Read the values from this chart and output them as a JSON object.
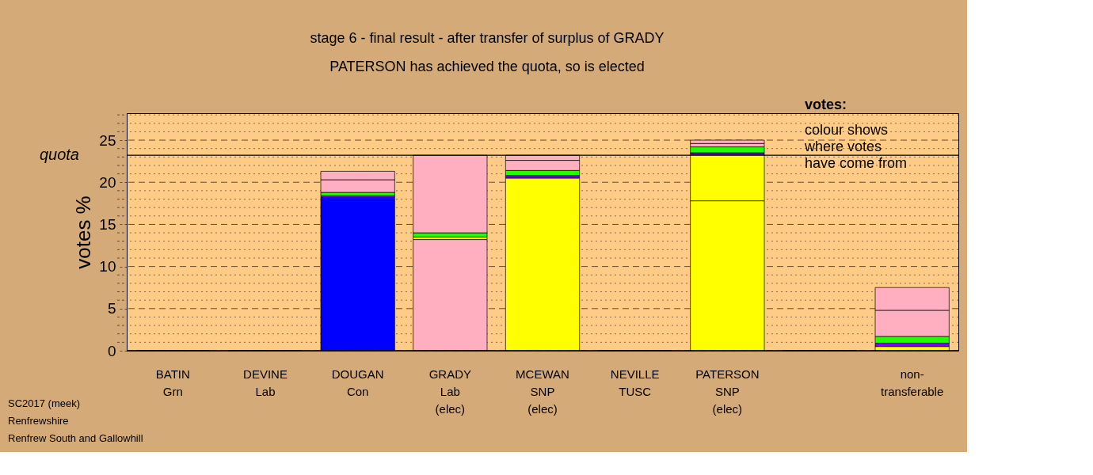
{
  "chart_data": {
    "type": "bar",
    "stacked": true,
    "title": "stage 6 - final result - after transfer of surplus of GRADY",
    "subtitle": "PATERSON has achieved the quota, so is elected",
    "ylabel": "votes %",
    "categories": [
      "BATIN\nGrn",
      "DEVINE\nLab",
      "DOUGAN\nCon",
      "GRADY\nLab\n(elec)",
      "MCEWAN\nSNP\n(elec)",
      "NEVILLE\nTUSC",
      "PATERSON\nSNP\n(elec)",
      null,
      "non-\ntransferable"
    ],
    "series": [
      {
        "values": [
          0,
          0,
          18.2,
          13.2,
          20.5,
          0,
          17.8,
          0,
          0.5
        ],
        "colors": [
          "#000000",
          "#000000",
          "#0000ff",
          "#ffafc0",
          "#ffff00",
          "#000000",
          "#ffff00",
          "#000000",
          "#ffff00"
        ]
      },
      {
        "values": [
          null,
          null,
          0.2,
          0.3,
          0.3,
          null,
          5.5,
          null,
          0.4
        ],
        "colors": [
          null,
          null,
          "#7f00ff",
          "#ffff00",
          "#7f00ff",
          null,
          "#ffff00",
          null,
          "#7f00ff"
        ]
      },
      {
        "values": [
          null,
          null,
          0.4,
          0.5,
          0.6,
          null,
          0.2,
          null,
          0.8
        ],
        "colors": [
          null,
          null,
          "#22ff00",
          "#22ff00",
          "#22ff00",
          null,
          "#7f00ff",
          null,
          "#22ff00"
        ]
      },
      {
        "values": [
          null,
          null,
          1.5,
          9.2,
          1.2,
          null,
          0.7,
          null,
          3.1
        ],
        "colors": [
          null,
          null,
          "#ffafc0",
          "#ffafc0",
          "#ffafc0",
          null,
          "#22ff00",
          null,
          "#ffafc0"
        ]
      },
      {
        "values": [
          null,
          null,
          1.0,
          null,
          0.6,
          null,
          0.4,
          null,
          2.7
        ],
        "colors": [
          null,
          null,
          "#ffafc0",
          null,
          "#ffafc0",
          null,
          "#ffafc0",
          null,
          "#ffafc0"
        ]
      },
      {
        "values": [
          null,
          null,
          null,
          null,
          null,
          null,
          0.4,
          null,
          null
        ],
        "colors": [
          null,
          null,
          null,
          null,
          null,
          null,
          "#ffafc0",
          null,
          null
        ]
      }
    ],
    "ylim": [
      0,
      28.2
    ],
    "yticks": [
      0,
      {
        "value": 1,
        "label": null
      },
      {
        "value": 2,
        "label": null
      },
      {
        "value": 3,
        "label": null
      },
      {
        "value": 4,
        "label": null
      },
      5,
      {
        "value": 6,
        "label": null
      },
      {
        "value": 7,
        "label": null
      },
      {
        "value": 8,
        "label": null
      },
      {
        "value": 9,
        "label": null
      },
      10,
      {
        "value": 11,
        "label": null
      },
      {
        "value": 12,
        "label": null
      },
      {
        "value": 13,
        "label": null
      },
      {
        "value": 14,
        "label": null
      },
      15,
      {
        "value": 16,
        "label": null
      },
      {
        "value": 17,
        "label": null
      },
      {
        "value": 18,
        "label": null
      },
      {
        "value": 19,
        "label": null
      },
      20,
      {
        "value": 21,
        "label": null
      },
      {
        "value": 22,
        "label": null
      },
      {
        "value": 23,
        "label": null
      },
      {
        "value": 24,
        "label": null
      },
      25,
      {
        "value": 26,
        "label": null
      },
      {
        "value": 27,
        "label": null
      },
      {
        "value": 28,
        "label": null
      }
    ],
    "grid": "y",
    "ref_lines": [
      {
        "axis": "y",
        "value": 23.2,
        "label": "quota",
        "color": "#000000",
        "line_style": "solid"
      }
    ],
    "annotations": [
      "votes:",
      "colour shows\nwhere votes\nhave come from",
      "SC2017 (meek)",
      "Renfrewshire",
      "Renfrew South and Gallowhill"
    ]
  }
}
